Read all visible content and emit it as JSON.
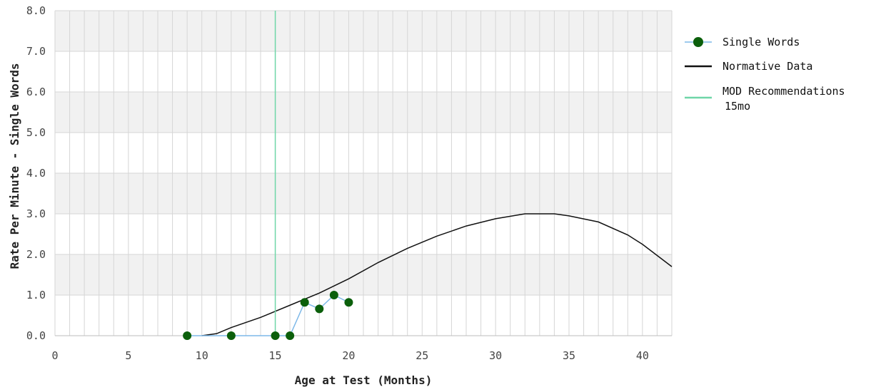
{
  "chart_data": {
    "type": "line",
    "xlabel": "Age at Test (Months)",
    "ylabel": "Rate Per Minute - Single Words",
    "xlim": [
      0,
      42
    ],
    "ylim": [
      0,
      8
    ],
    "x_ticks": [
      0,
      5,
      10,
      15,
      20,
      25,
      30,
      35,
      40
    ],
    "y_ticks": [
      "0.0",
      "1.0",
      "2.0",
      "3.0",
      "4.0",
      "5.0",
      "6.0",
      "7.0",
      "8.0"
    ],
    "minor_x_step": 1,
    "grid": true,
    "band_color": "#f1f1f1",
    "legend_position": "right",
    "series": [
      {
        "name": "Single Words",
        "kind": "line-markers",
        "line_color": "#7db8e8",
        "marker_color": "#0b5f0b",
        "x": [
          9,
          12,
          15,
          16,
          17,
          18,
          19,
          20
        ],
        "y": [
          0.0,
          0.0,
          0.0,
          0.0,
          0.82,
          0.66,
          1.0,
          0.82
        ]
      },
      {
        "name": "Normative Data",
        "kind": "line",
        "color": "#111111",
        "x": [
          10,
          11,
          12,
          14,
          16,
          18,
          20,
          22,
          24,
          26,
          28,
          30,
          32,
          34,
          35,
          37,
          39,
          40,
          42
        ],
        "y": [
          0.0,
          0.05,
          0.2,
          0.45,
          0.75,
          1.05,
          1.4,
          1.8,
          2.15,
          2.45,
          2.7,
          2.88,
          3.0,
          3.0,
          2.95,
          2.8,
          2.48,
          2.25,
          1.7
        ]
      },
      {
        "name": "MOD Recommendations",
        "name_line2": "15mo",
        "kind": "vline",
        "color": "#6fd6a8",
        "x": 15
      }
    ]
  }
}
